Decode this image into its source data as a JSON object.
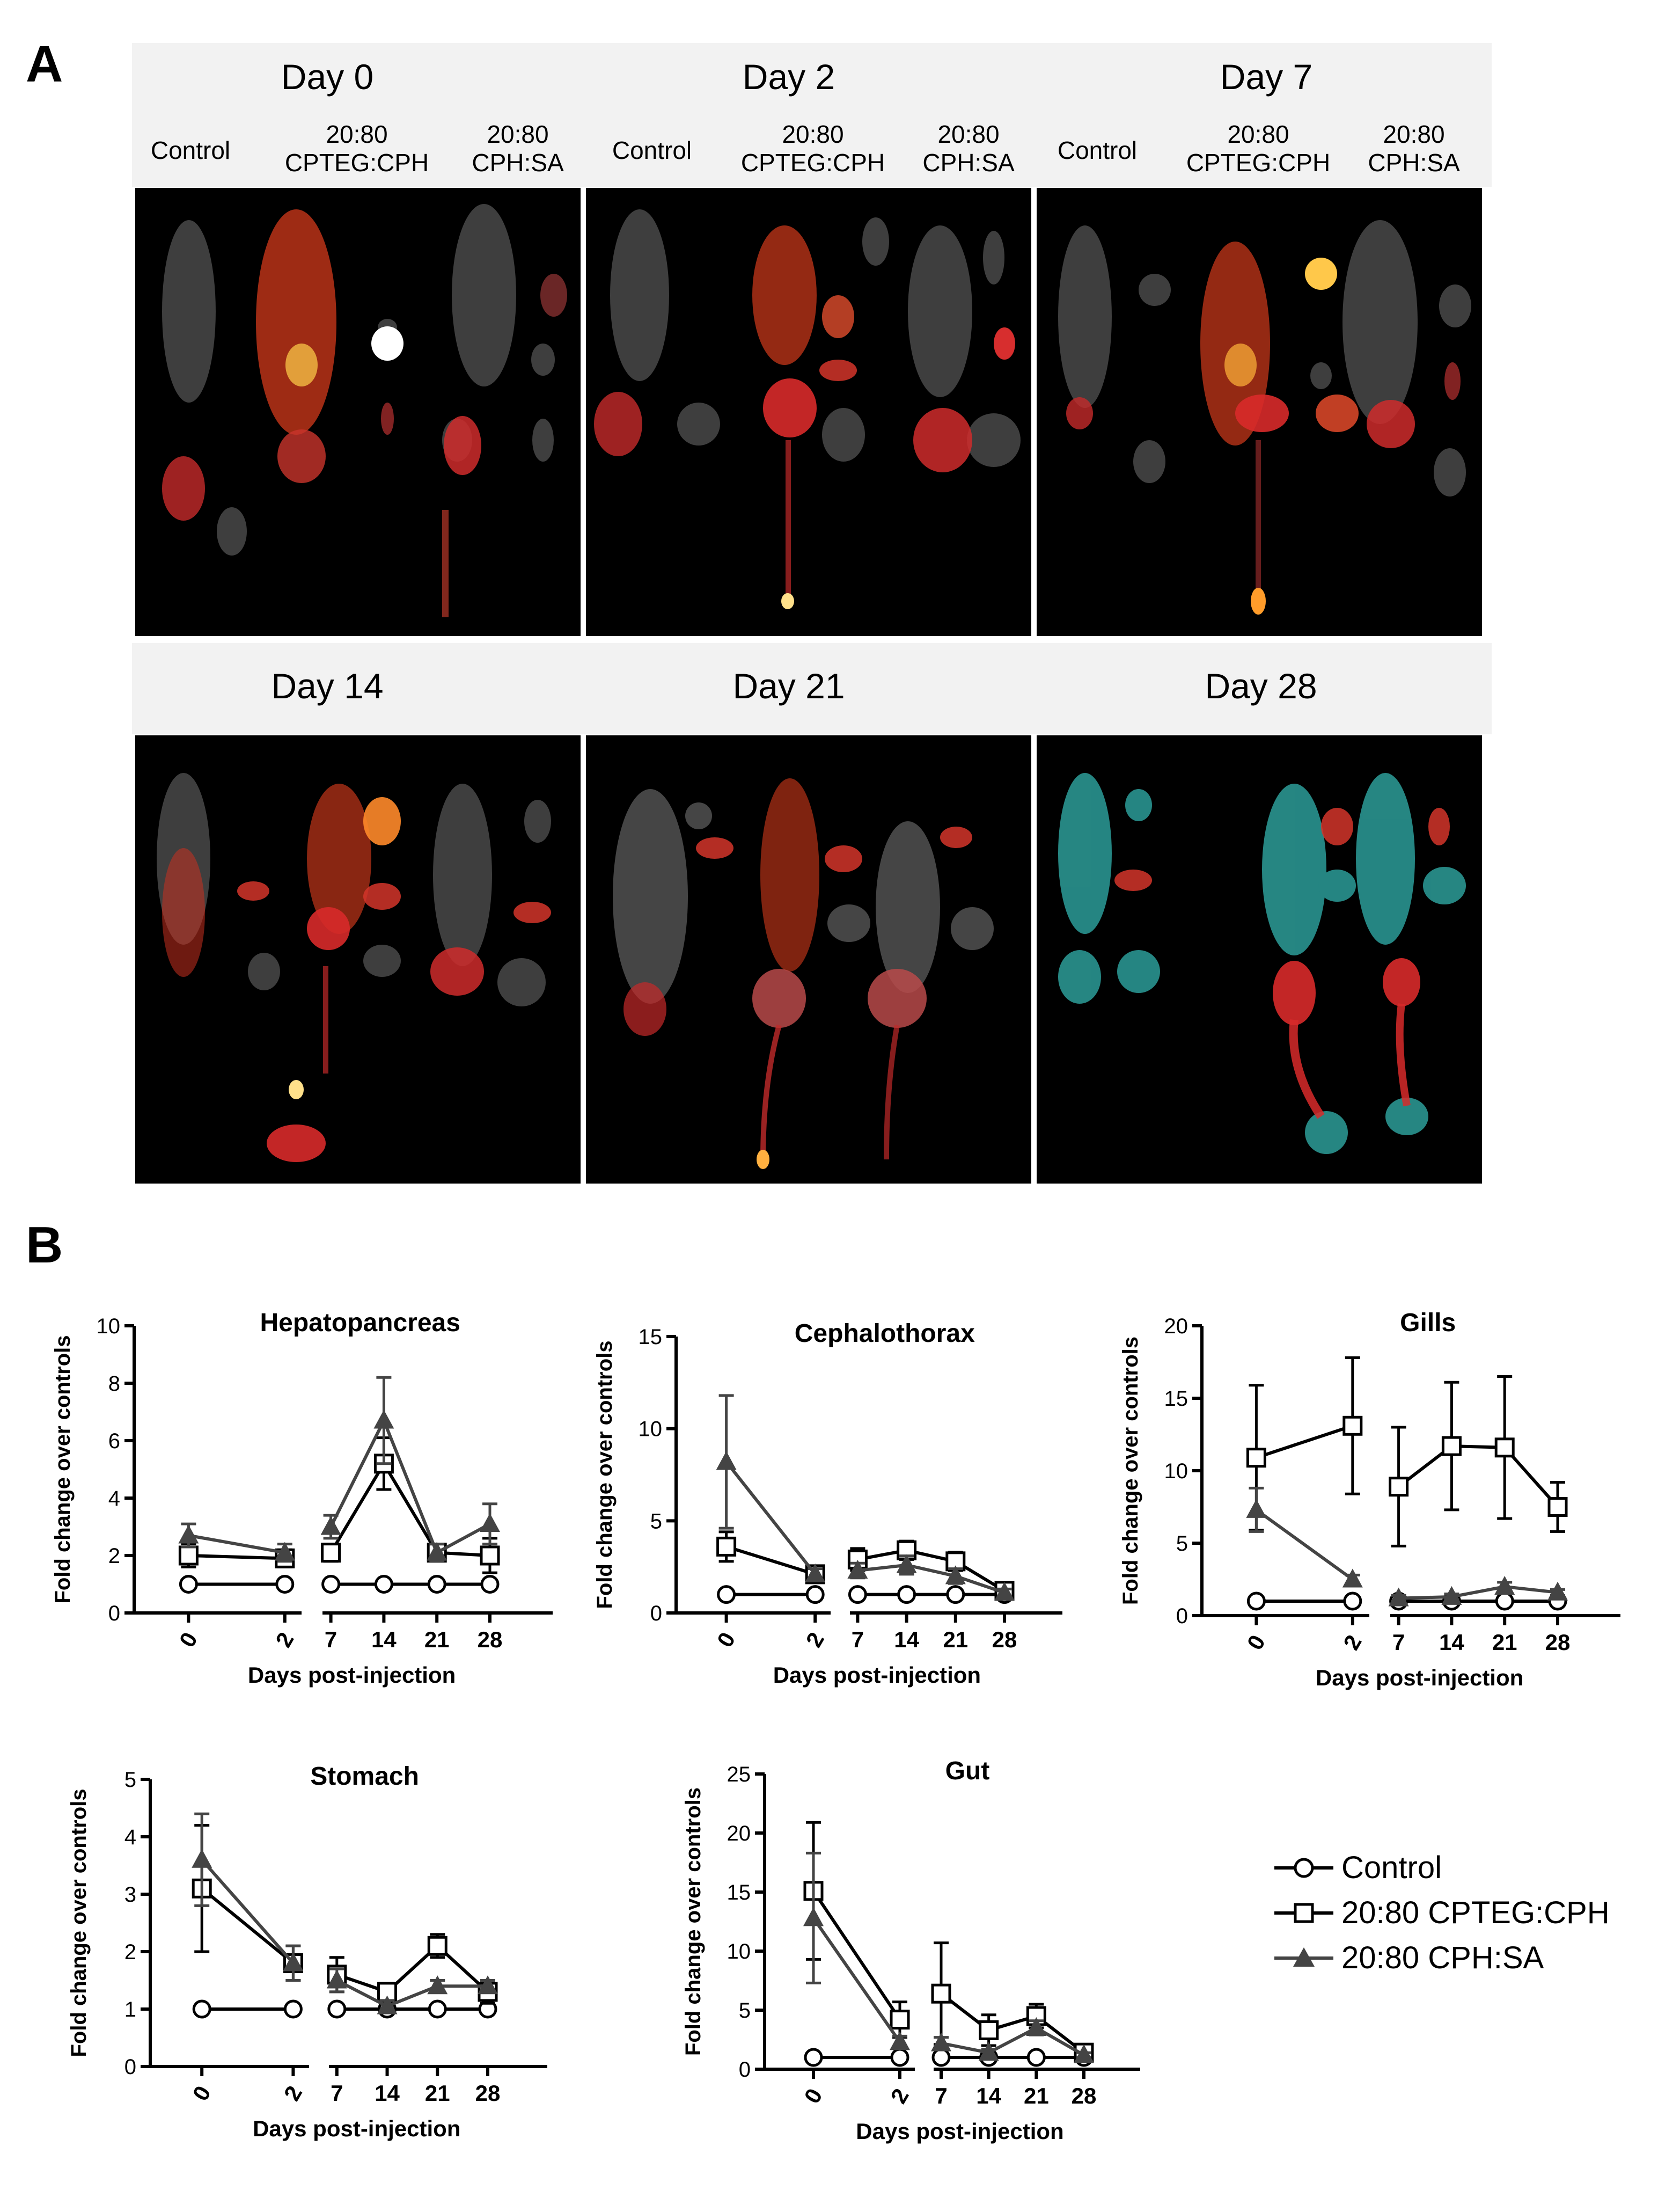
{
  "panel_a": {
    "letter": "A",
    "days_top": [
      "Day 0",
      "Day 2",
      "Day 7"
    ],
    "days_bottom": [
      "Day 14",
      "Day 21",
      "Day 28"
    ],
    "group_labels": [
      "Control",
      "20:80\nCPTEG:CPH",
      "20:80\nCPH:SA"
    ]
  },
  "panel_b": {
    "letter": "B",
    "legend": [
      {
        "label": "Control",
        "marker": "circle-open"
      },
      {
        "label": "20:80 CPTEG:CPH",
        "marker": "square-open"
      },
      {
        "label": "20:80 CPH:SA",
        "marker": "triangle-filled"
      }
    ]
  },
  "chart_data": [
    {
      "type": "line",
      "title": "Hepatopancreas",
      "xlabel": "Days post-injection",
      "ylabel": "Fold change over controls",
      "x": [
        0,
        2,
        7,
        14,
        21,
        28
      ],
      "x_break_between": [
        2,
        7
      ],
      "ylim": [
        0,
        10
      ],
      "yticks": [
        0,
        2,
        4,
        6,
        8,
        10
      ],
      "series": [
        {
          "name": "Control",
          "values": [
            1,
            1,
            1,
            1,
            1,
            1
          ],
          "err": [
            0,
            0,
            0,
            0,
            0,
            0
          ]
        },
        {
          "name": "20:80 CPTEG:CPH",
          "values": [
            2.0,
            1.9,
            2.1,
            5.2,
            2.1,
            2.0
          ],
          "err": [
            0.4,
            0.3,
            0.3,
            0.9,
            0.3,
            0.6
          ]
        },
        {
          "name": "20:80 CPH:SA",
          "values": [
            2.7,
            2.1,
            3.0,
            6.7,
            2.1,
            3.1
          ],
          "err": [
            0.4,
            0.3,
            0.4,
            1.5,
            0.3,
            0.7
          ]
        }
      ]
    },
    {
      "type": "line",
      "title": "Cephalothorax",
      "xlabel": "Days post-injection",
      "ylabel": "Fold change over controls",
      "x": [
        0,
        2,
        7,
        14,
        21,
        28
      ],
      "x_break_between": [
        2,
        7
      ],
      "ylim": [
        0,
        15
      ],
      "yticks": [
        0,
        5,
        10,
        15
      ],
      "series": [
        {
          "name": "Control",
          "values": [
            1,
            1,
            1,
            1,
            1,
            1
          ],
          "err": [
            0,
            0,
            0,
            0,
            0,
            0
          ]
        },
        {
          "name": "20:80 CPTEG:CPH",
          "values": [
            3.6,
            2.1,
            2.9,
            3.4,
            2.8,
            1.2
          ],
          "err": [
            0.8,
            0.3,
            0.6,
            0.5,
            0.5,
            0.2
          ]
        },
        {
          "name": "20:80 CPH:SA",
          "values": [
            8.2,
            2.1,
            2.3,
            2.6,
            2.0,
            1.1
          ],
          "err": [
            3.6,
            0.3,
            0.4,
            0.5,
            0.4,
            0.2
          ]
        }
      ]
    },
    {
      "type": "line",
      "title": "Gills",
      "xlabel": "Days post-injection",
      "ylabel": "Fold change over controls",
      "x": [
        0,
        2,
        7,
        14,
        21,
        28
      ],
      "x_break_between": [
        2,
        7
      ],
      "ylim": [
        0,
        20
      ],
      "yticks": [
        0,
        5,
        10,
        15,
        20
      ],
      "series": [
        {
          "name": "Control",
          "values": [
            1,
            1,
            1,
            1,
            1,
            1
          ],
          "err": [
            0,
            0,
            0,
            0,
            0,
            0
          ]
        },
        {
          "name": "20:80 CPTEG:CPH",
          "values": [
            10.9,
            13.1,
            8.9,
            11.7,
            11.6,
            7.5
          ],
          "err": [
            5.0,
            4.7,
            4.1,
            4.4,
            4.9,
            1.7
          ]
        },
        {
          "name": "20:80 CPH:SA",
          "values": [
            7.3,
            2.5,
            1.2,
            1.3,
            2.0,
            1.6
          ],
          "err": [
            1.5,
            0.3,
            0.2,
            0.2,
            0.3,
            0.2
          ]
        }
      ]
    },
    {
      "type": "line",
      "title": "Stomach",
      "xlabel": "Days post-injection",
      "ylabel": "Fold change over controls",
      "x": [
        0,
        2,
        7,
        14,
        21,
        28
      ],
      "x_break_between": [
        2,
        7
      ],
      "ylim": [
        0,
        5
      ],
      "yticks": [
        0,
        1,
        2,
        3,
        4,
        5
      ],
      "series": [
        {
          "name": "Control",
          "values": [
            1,
            1,
            1,
            1,
            1,
            1
          ],
          "err": [
            0,
            0,
            0,
            0,
            0,
            0
          ]
        },
        {
          "name": "20:80 CPTEG:CPH",
          "values": [
            3.1,
            1.8,
            1.6,
            1.3,
            2.1,
            1.3
          ],
          "err": [
            1.1,
            0.3,
            0.3,
            0.1,
            0.2,
            0.2
          ]
        },
        {
          "name": "20:80 CPH:SA",
          "values": [
            3.6,
            1.8,
            1.5,
            1.05,
            1.4,
            1.4
          ],
          "err": [
            0.8,
            0.3,
            0.2,
            0.1,
            0.1,
            0.1
          ]
        }
      ]
    },
    {
      "type": "line",
      "title": "Gut",
      "xlabel": "Days post-injection",
      "ylabel": "Fold change over controls",
      "x": [
        0,
        2,
        7,
        14,
        21,
        28
      ],
      "x_break_between": [
        2,
        7
      ],
      "ylim": [
        0,
        25
      ],
      "yticks": [
        0,
        5,
        10,
        15,
        20,
        25
      ],
      "series": [
        {
          "name": "Control",
          "values": [
            1,
            1,
            1,
            1,
            1,
            1
          ],
          "err": [
            0,
            0,
            0,
            0,
            0,
            0
          ]
        },
        {
          "name": "20:80 CPTEG:CPH",
          "values": [
            15.1,
            4.2,
            6.4,
            3.3,
            4.5,
            1.4
          ],
          "err": [
            5.8,
            1.5,
            4.3,
            1.3,
            1.0,
            0.3
          ]
        },
        {
          "name": "20:80 CPH:SA",
          "values": [
            12.8,
            2.3,
            2.2,
            1.4,
            3.5,
            1.2
          ],
          "err": [
            5.5,
            0.5,
            0.5,
            0.3,
            0.6,
            0.2
          ]
        }
      ]
    }
  ]
}
